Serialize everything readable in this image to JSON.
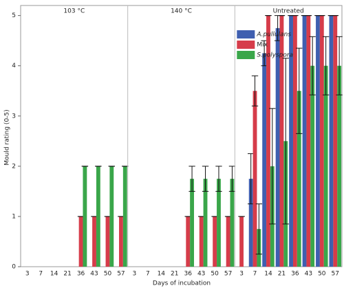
{
  "chart_data": {
    "type": "bar",
    "ylabel": "Mould rating (0-5)",
    "xlabel": "Days of incubation",
    "ylim": [
      0,
      5.2
    ],
    "yticks": [
      0,
      1,
      2,
      3,
      4,
      5
    ],
    "series": [
      {
        "name": "A.pullulans",
        "color": "#3f5fb0"
      },
      {
        "name": "Mix",
        "color": "#d63c4a"
      },
      {
        "name": "S.polyspora",
        "color": "#3aa64a"
      }
    ],
    "panels": [
      {
        "title": "103 °C",
        "categories": [
          "3",
          "7",
          "14",
          "21",
          "36",
          "43",
          "50",
          "57"
        ],
        "series": [
          {
            "values": [
              0,
              0,
              0,
              0,
              0,
              0,
              0,
              0
            ],
            "errors": [
              null,
              null,
              null,
              null,
              null,
              null,
              null,
              null
            ]
          },
          {
            "values": [
              0,
              0,
              0,
              0,
              1,
              1,
              1,
              1
            ],
            "errors": [
              null,
              null,
              null,
              null,
              0,
              0,
              0,
              0
            ]
          },
          {
            "values": [
              0,
              0,
              0,
              0,
              2,
              2,
              2,
              2
            ],
            "errors": [
              null,
              null,
              null,
              null,
              0,
              0,
              0,
              0
            ]
          }
        ]
      },
      {
        "title": "140 °C",
        "categories": [
          "3",
          "7",
          "14",
          "21",
          "36",
          "43",
          "50",
          "57"
        ],
        "series": [
          {
            "values": [
              0,
              0,
              0,
              0,
              0,
              0,
              0,
              0
            ],
            "errors": [
              null,
              null,
              null,
              null,
              null,
              null,
              null,
              null
            ]
          },
          {
            "values": [
              0,
              0,
              0,
              0,
              1,
              1,
              1,
              1
            ],
            "errors": [
              null,
              null,
              null,
              null,
              0,
              0,
              0,
              0
            ]
          },
          {
            "values": [
              0,
              0,
              0,
              0,
              1.75,
              1.75,
              1.75,
              1.75
            ],
            "errors": [
              null,
              null,
              null,
              null,
              0.25,
              0.25,
              0.25,
              0.25
            ]
          }
        ]
      },
      {
        "title": "Untreated",
        "categories": [
          "3",
          "7",
          "14",
          "21",
          "36",
          "43",
          "50",
          "57"
        ],
        "series": [
          {
            "values": [
              0,
              1.75,
              4.25,
              4.75,
              5,
              5,
              5,
              5
            ],
            "errors": [
              null,
              0.5,
              0.25,
              0.25,
              0,
              0,
              0,
              0
            ]
          },
          {
            "values": [
              1,
              3.5,
              5,
              5,
              5,
              5,
              5,
              5
            ],
            "errors": [
              0,
              0.3,
              0,
              0,
              0,
              0,
              0,
              0
            ]
          },
          {
            "values": [
              0,
              0.75,
              2,
              2.5,
              3.5,
              4,
              4,
              4
            ],
            "errors": [
              null,
              0.5,
              1.15,
              1.65,
              0.85,
              0.58,
              0.58,
              0.58
            ]
          }
        ]
      }
    ]
  }
}
